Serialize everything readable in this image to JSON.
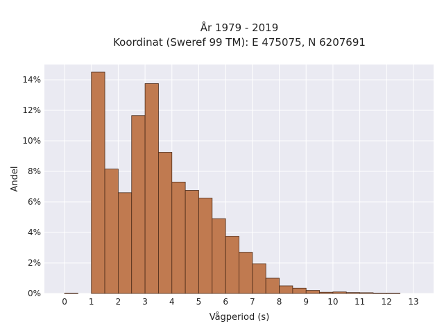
{
  "chart_data": {
    "type": "bar",
    "title_lines": [
      "År 1979 - 2019",
      "Koordinat (Sweref 99 TM): E 475075, N 6207691"
    ],
    "xlabel": "Vågperiod (s)",
    "ylabel": "Andel",
    "x_ticks": [
      "0",
      "1",
      "2",
      "3",
      "4",
      "5",
      "6",
      "7",
      "8",
      "9",
      "10",
      "11",
      "12",
      "13"
    ],
    "y_ticks": [
      "0%",
      "2%",
      "4%",
      "6%",
      "8%",
      "10%",
      "12%",
      "14%"
    ],
    "xlim": [
      -0.75,
      13.75
    ],
    "ylim": [
      0,
      0.15
    ],
    "grid": true,
    "bin_width": 0.5,
    "bins": [
      {
        "start": 0.0,
        "value": 0.0002
      },
      {
        "start": 1.0,
        "value": 0.145
      },
      {
        "start": 1.5,
        "value": 0.0815
      },
      {
        "start": 2.0,
        "value": 0.066
      },
      {
        "start": 2.5,
        "value": 0.1165
      },
      {
        "start": 3.0,
        "value": 0.1375
      },
      {
        "start": 3.5,
        "value": 0.0925
      },
      {
        "start": 4.0,
        "value": 0.073
      },
      {
        "start": 4.5,
        "value": 0.0675
      },
      {
        "start": 5.0,
        "value": 0.0625
      },
      {
        "start": 5.5,
        "value": 0.049
      },
      {
        "start": 6.0,
        "value": 0.0375
      },
      {
        "start": 6.5,
        "value": 0.027
      },
      {
        "start": 7.0,
        "value": 0.0195
      },
      {
        "start": 7.5,
        "value": 0.01
      },
      {
        "start": 8.0,
        "value": 0.005
      },
      {
        "start": 8.5,
        "value": 0.0035
      },
      {
        "start": 9.0,
        "value": 0.002
      },
      {
        "start": 9.5,
        "value": 0.0008
      },
      {
        "start": 10.0,
        "value": 0.001
      },
      {
        "start": 10.5,
        "value": 0.0006
      },
      {
        "start": 11.0,
        "value": 0.0005
      },
      {
        "start": 11.5,
        "value": 0.0002
      },
      {
        "start": 12.0,
        "value": 0.0002
      }
    ],
    "colors": {
      "bar_fill": "#c07a50",
      "bar_edge": "#4a2a18",
      "plot_bg": "#eaeaf2",
      "grid": "#ffffff"
    }
  }
}
